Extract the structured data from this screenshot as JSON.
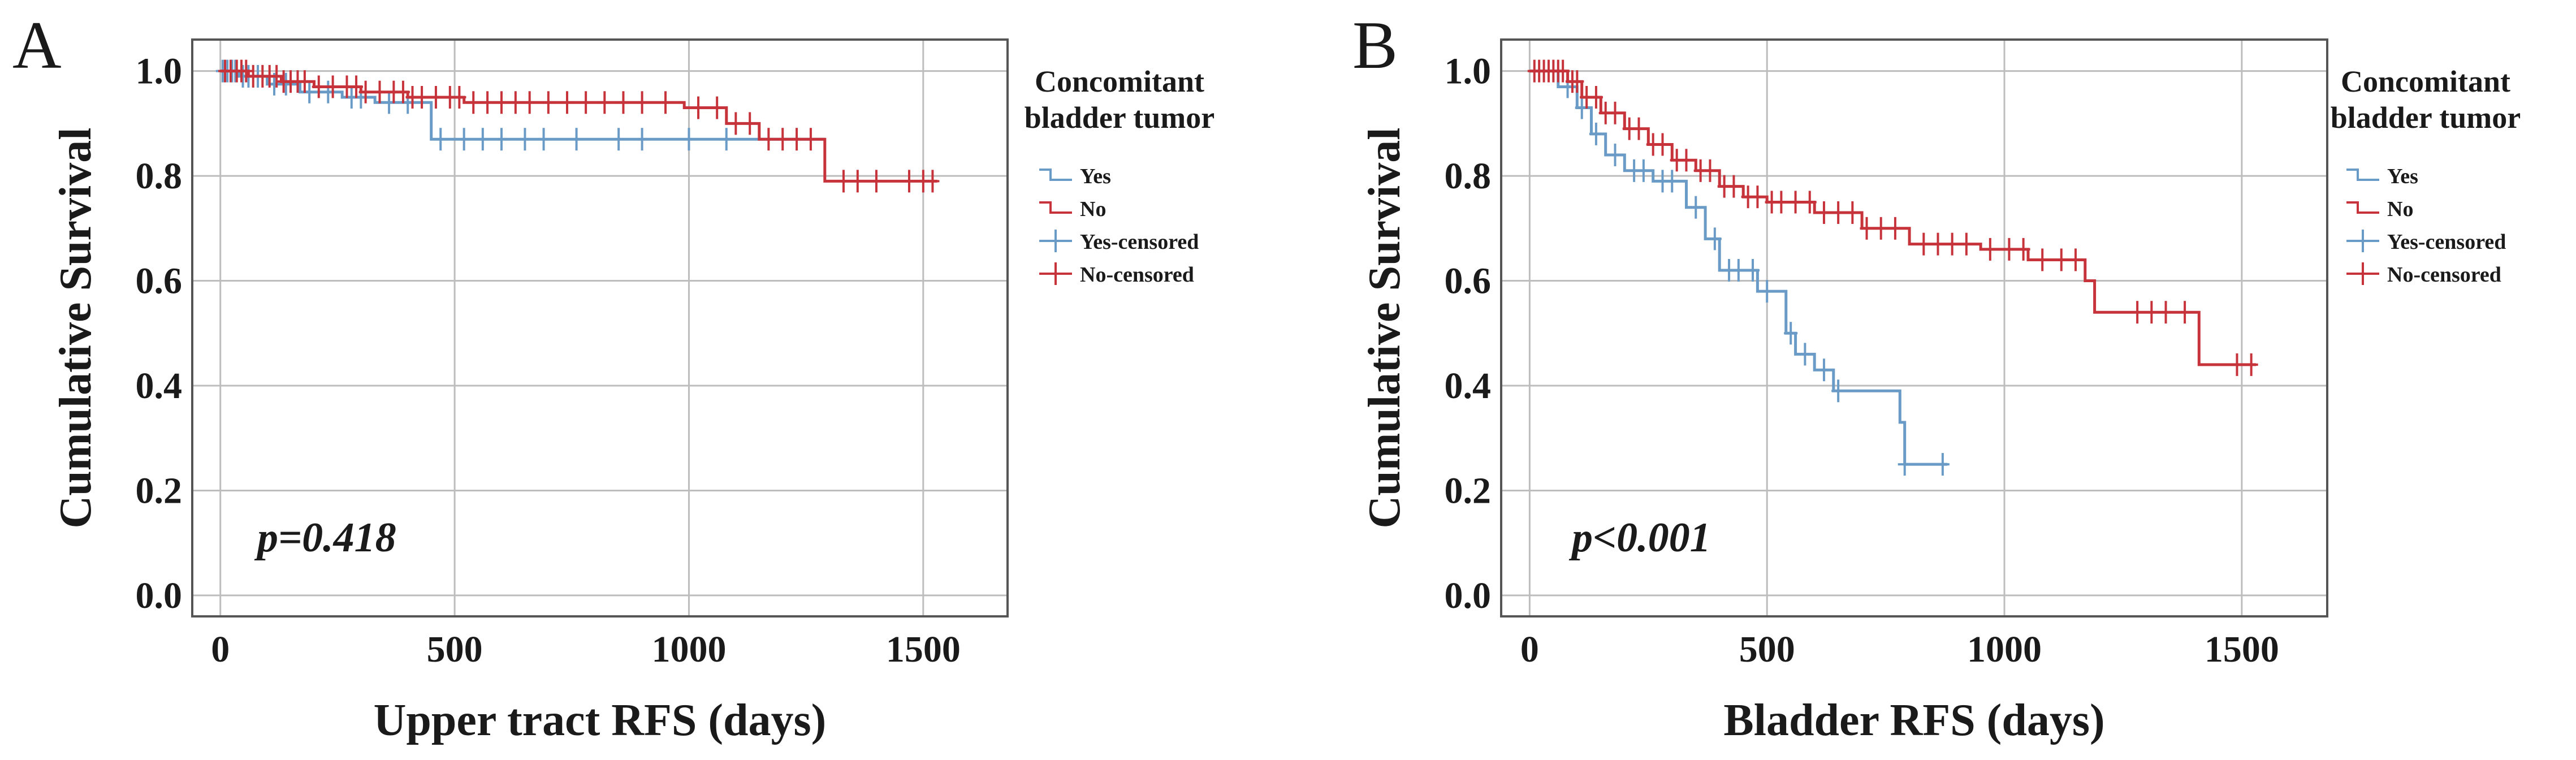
{
  "chart_data": [
    {
      "type": "line",
      "panel": "A",
      "xlabel": "Upper tract RFS (days)",
      "ylabel": "Cumulative Survival",
      "xlim": [
        -60,
        1680
      ],
      "ylim": [
        -0.04,
        1.06
      ],
      "xticks": [
        0,
        500,
        1000,
        1500
      ],
      "xtick_labels": [
        "0",
        "500",
        "1000",
        "1500"
      ],
      "yticks": [
        0.0,
        0.2,
        0.4,
        0.6,
        0.8,
        1.0
      ],
      "ytick_labels": [
        "0.0",
        "0.2",
        "0.4",
        "0.6",
        "0.8",
        "1.0"
      ],
      "grid": true,
      "annotation": "p=0.418",
      "legend": {
        "title_lines": [
          "Concomitant",
          "bladder tumor"
        ],
        "entries": [
          "Yes",
          "No",
          "Yes-censored",
          "No-censored"
        ],
        "placement": "right"
      },
      "series": [
        {
          "name": "Yes",
          "color": "#6a9bc6",
          "steps": [
            [
              0,
              1.0
            ],
            [
              40,
              0.99
            ],
            [
              100,
              0.975
            ],
            [
              170,
              0.96
            ],
            [
              260,
              0.95
            ],
            [
              330,
              0.94
            ],
            [
              450,
              0.87
            ],
            [
              1290,
              0.87
            ]
          ],
          "censored": [
            5,
            15,
            25,
            32,
            48,
            60,
            80,
            115,
            140,
            190,
            230,
            280,
            300,
            360,
            400,
            470,
            520,
            560,
            600,
            650,
            690,
            760,
            850,
            900,
            1000,
            1080
          ]
        },
        {
          "name": "No",
          "color": "#c6333a",
          "steps": [
            [
              0,
              1.0
            ],
            [
              60,
              0.99
            ],
            [
              130,
              0.98
            ],
            [
              200,
              0.97
            ],
            [
              300,
              0.96
            ],
            [
              400,
              0.95
            ],
            [
              520,
              0.94
            ],
            [
              990,
              0.93
            ],
            [
              1080,
              0.9
            ],
            [
              1150,
              0.87
            ],
            [
              1290,
              0.79
            ],
            [
              1530,
              0.79
            ]
          ],
          "censored": [
            10,
            22,
            35,
            45,
            55,
            70,
            90,
            105,
            120,
            135,
            150,
            165,
            180,
            210,
            240,
            270,
            290,
            310,
            340,
            370,
            390,
            410,
            430,
            460,
            490,
            510,
            540,
            570,
            600,
            630,
            660,
            700,
            740,
            780,
            820,
            860,
            900,
            950,
            1020,
            1060,
            1100,
            1130,
            1170,
            1200,
            1230,
            1260,
            1330,
            1360,
            1400,
            1470,
            1500,
            1520
          ]
        }
      ]
    },
    {
      "type": "line",
      "panel": "B",
      "xlabel": "Bladder RFS (days)",
      "ylabel": "Cumulative Survival",
      "xlim": [
        -60,
        1680
      ],
      "ylim": [
        -0.04,
        1.06
      ],
      "xticks": [
        0,
        500,
        1000,
        1500
      ],
      "xtick_labels": [
        "0",
        "500",
        "1000",
        "1500"
      ],
      "yticks": [
        0.0,
        0.2,
        0.4,
        0.6,
        0.8,
        1.0
      ],
      "ytick_labels": [
        "0.0",
        "0.2",
        "0.4",
        "0.6",
        "0.8",
        "1.0"
      ],
      "grid": true,
      "annotation": "p<0.001",
      "legend": {
        "title_lines": [
          "Concomitant",
          "bladder tumor"
        ],
        "entries": [
          "Yes",
          "No",
          "Yes-censored",
          "No-censored"
        ],
        "placement": "right"
      },
      "series": [
        {
          "name": "Yes",
          "color": "#6a9bc6",
          "steps": [
            [
              0,
              1.0
            ],
            [
              60,
              0.97
            ],
            [
              100,
              0.93
            ],
            [
              130,
              0.88
            ],
            [
              160,
              0.84
            ],
            [
              200,
              0.81
            ],
            [
              260,
              0.79
            ],
            [
              330,
              0.74
            ],
            [
              370,
              0.68
            ],
            [
              400,
              0.62
            ],
            [
              480,
              0.58
            ],
            [
              540,
              0.5
            ],
            [
              560,
              0.46
            ],
            [
              600,
              0.43
            ],
            [
              640,
              0.39
            ],
            [
              780,
              0.33
            ],
            [
              790,
              0.25
            ],
            [
              880,
              0.25
            ]
          ],
          "censored": [
            80,
            110,
            140,
            180,
            220,
            240,
            280,
            300,
            350,
            390,
            420,
            440,
            470,
            500,
            550,
            580,
            620,
            650,
            790,
            870
          ]
        },
        {
          "name": "No",
          "color": "#c6333a",
          "steps": [
            [
              0,
              1.0
            ],
            [
              80,
              0.98
            ],
            [
              110,
              0.95
            ],
            [
              150,
              0.92
            ],
            [
              200,
              0.89
            ],
            [
              250,
              0.86
            ],
            [
              300,
              0.83
            ],
            [
              350,
              0.81
            ],
            [
              400,
              0.78
            ],
            [
              450,
              0.76
            ],
            [
              500,
              0.75
            ],
            [
              600,
              0.73
            ],
            [
              700,
              0.7
            ],
            [
              800,
              0.67
            ],
            [
              950,
              0.66
            ],
            [
              1050,
              0.64
            ],
            [
              1170,
              0.6
            ],
            [
              1190,
              0.54
            ],
            [
              1410,
              0.44
            ],
            [
              1530,
              0.44
            ]
          ],
          "censored": [
            10,
            20,
            30,
            40,
            50,
            60,
            70,
            90,
            100,
            120,
            140,
            160,
            180,
            210,
            230,
            260,
            280,
            310,
            330,
            360,
            380,
            410,
            430,
            460,
            480,
            510,
            530,
            560,
            590,
            620,
            650,
            680,
            710,
            740,
            770,
            830,
            860,
            890,
            920,
            970,
            1010,
            1040,
            1080,
            1120,
            1150,
            1280,
            1310,
            1340,
            1380,
            1490,
            1520
          ]
        }
      ]
    }
  ]
}
